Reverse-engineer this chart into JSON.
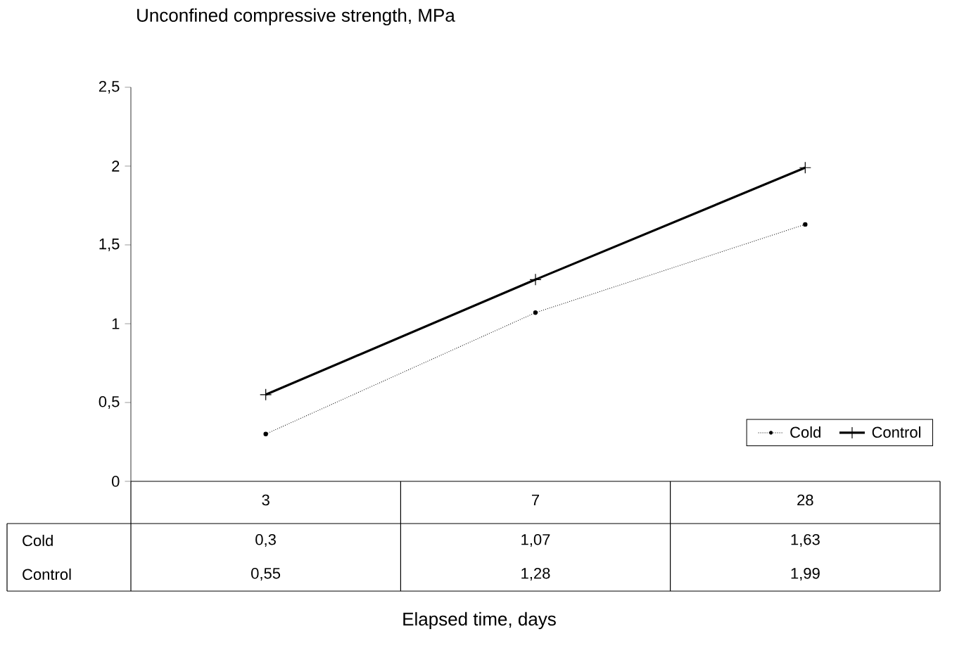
{
  "chart_data": {
    "type": "line",
    "ylabel": "Unconfined compressive strength, MPa",
    "annotations": [
      "Elapsed time, days"
    ],
    "categories": [
      "3",
      "7",
      "28"
    ],
    "series": [
      {
        "name": "Cold",
        "color": "#000000",
        "values": [
          0.3,
          1.07,
          1.63
        ],
        "value_labels": [
          "0,3",
          "1,07",
          "1,63"
        ],
        "line_style": "dotted",
        "marker": "circle"
      },
      {
        "name": "Control",
        "color": "#000000",
        "values": [
          0.55,
          1.28,
          1.99
        ],
        "value_labels": [
          "0,55",
          "1,28",
          "1,99"
        ],
        "line_style": "solid",
        "marker": "cross"
      }
    ],
    "ylim": [
      0,
      2.5
    ],
    "yticks": [
      0,
      {
        "value": 0.5,
        "label": "0,5"
      },
      1,
      {
        "value": 1.5,
        "label": "1,5"
      },
      2,
      {
        "value": 2.5,
        "label": "2,5"
      }
    ],
    "grid": false,
    "legend": "bottom right"
  }
}
